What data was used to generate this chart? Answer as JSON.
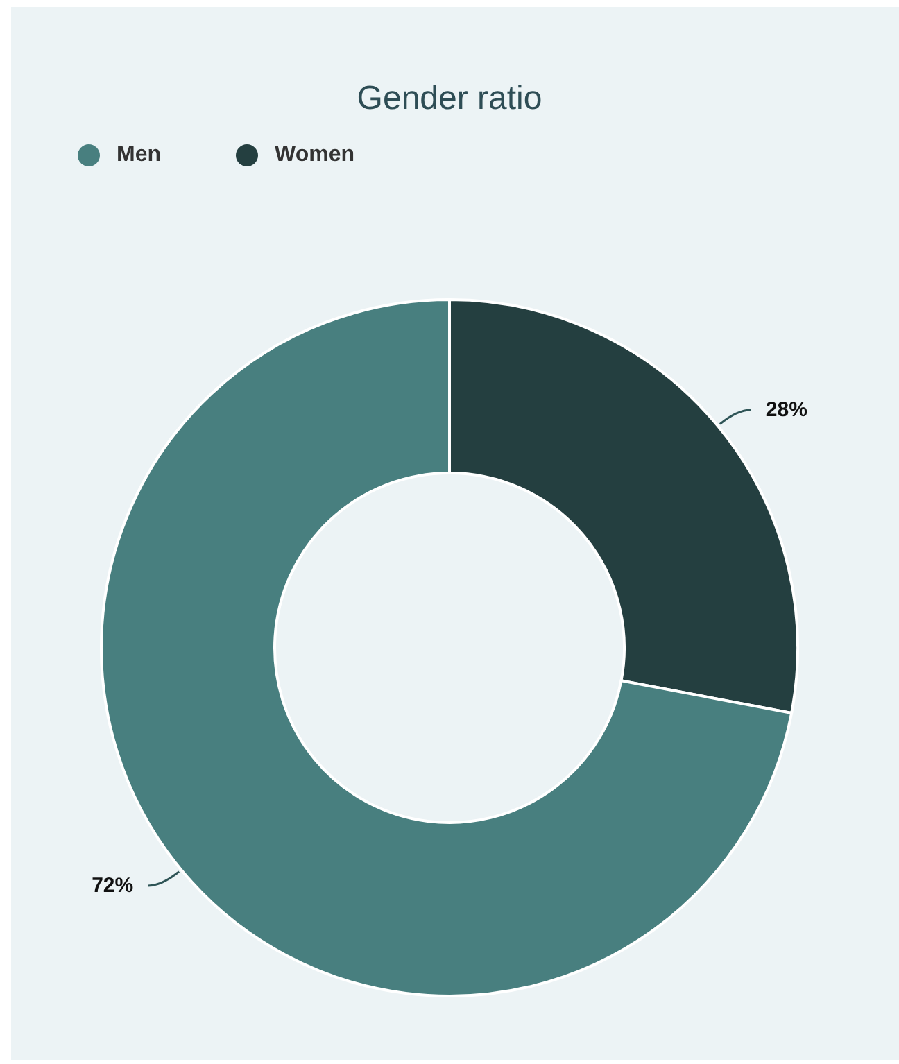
{
  "chart_data": {
    "type": "donut",
    "title": "Gender ratio",
    "categories": [
      "Women",
      "Men"
    ],
    "values": [
      28,
      72
    ],
    "colors": [
      "#243f40",
      "#487f7f"
    ],
    "value_labels": [
      "28%",
      "72%"
    ],
    "legend": "top left"
  }
}
